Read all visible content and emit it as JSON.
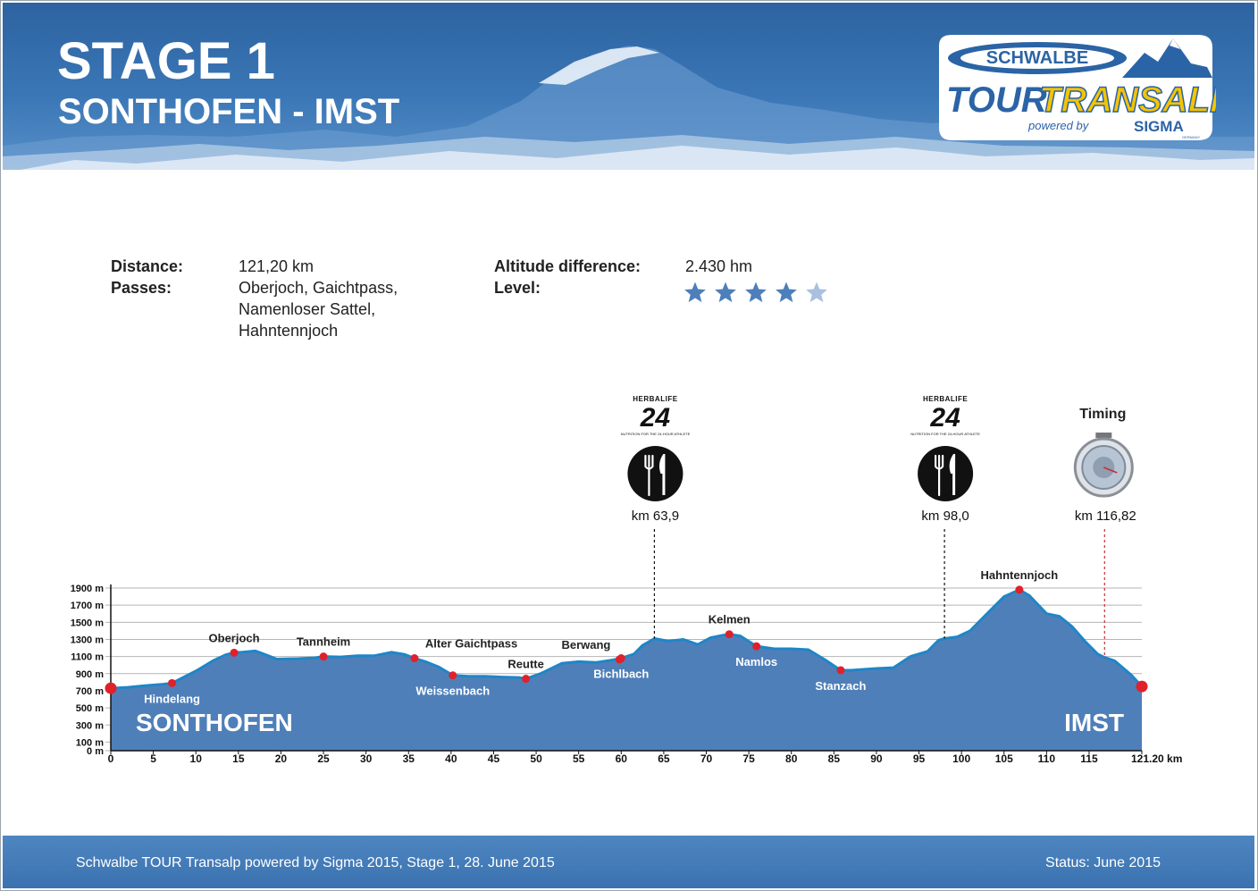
{
  "header": {
    "title": "STAGE 1",
    "subtitle": "SONTHOFEN - IMST",
    "logo": {
      "top": "SCHWALBE",
      "main_left": "TOUR",
      "main_right": "TRANSALP",
      "powered": "powered by",
      "sponsor": "SIGMA",
      "sponsor_sub": "GERMANY"
    }
  },
  "info": {
    "distance_label": "Distance:",
    "distance_value": "121,20 km",
    "passes_label": "Passes:",
    "passes_lines": [
      "Oberjoch, Gaichtpass,",
      "Namenloser Sattel,",
      "Hahntennjoch"
    ],
    "altitude_label": "Altitude difference:",
    "altitude_value": "2.430 hm",
    "level_label": "Level:",
    "level_rating": 4,
    "level_max": 5
  },
  "stations": [
    {
      "type": "food",
      "brand": "HERBALIFE",
      "brand_num": "24",
      "tagline": "NUTRITION FOR THE 24-HOUR ATHLETE",
      "km": 63.9,
      "label": "km 63,9"
    },
    {
      "type": "food",
      "brand": "HERBALIFE",
      "brand_num": "24",
      "tagline": "NUTRITION FOR THE 24-HOUR ATHLETE",
      "km": 98.0,
      "label": "km 98,0"
    },
    {
      "type": "timing",
      "title": "Timing",
      "km": 116.82,
      "label": "km 116,82"
    }
  ],
  "chart_data": {
    "type": "area",
    "x_unit": "km",
    "y_unit": "m",
    "xlim": [
      0,
      121.2
    ],
    "ylim": [
      0,
      1900
    ],
    "x_ticks": [
      "0",
      "5",
      "10",
      "15",
      "20",
      "25",
      "30",
      "35",
      "40",
      "45",
      "50",
      "55",
      "60",
      "65",
      "70",
      "75",
      "80",
      "85",
      "90",
      "95",
      "100",
      "105",
      "110",
      "115"
    ],
    "x_end_label": "121.20 km",
    "y_ticks": [
      "0 m",
      "100 m",
      "300 m",
      "500 m",
      "700 m",
      "900 m",
      "1100 m",
      "1300 m",
      "1500 m",
      "1700 m",
      "1900 m"
    ],
    "start_label": "SONTHOFEN",
    "end_label": "IMST",
    "profile": [
      [
        0,
        730
      ],
      [
        2,
        740
      ],
      [
        4,
        760
      ],
      [
        6,
        775
      ],
      [
        7.2,
        790
      ],
      [
        8,
        830
      ],
      [
        10,
        930
      ],
      [
        12,
        1050
      ],
      [
        13.5,
        1120
      ],
      [
        14.5,
        1145
      ],
      [
        15.5,
        1150
      ],
      [
        17,
        1165
      ],
      [
        18.5,
        1110
      ],
      [
        19.5,
        1070
      ],
      [
        22,
        1075
      ],
      [
        24,
        1085
      ],
      [
        25,
        1100
      ],
      [
        27,
        1095
      ],
      [
        29,
        1110
      ],
      [
        31,
        1110
      ],
      [
        33,
        1150
      ],
      [
        34.5,
        1125
      ],
      [
        35.7,
        1080
      ],
      [
        37,
        1040
      ],
      [
        38.5,
        980
      ],
      [
        40.2,
        880
      ],
      [
        42,
        870
      ],
      [
        44,
        870
      ],
      [
        46,
        860
      ],
      [
        48,
        855
      ],
      [
        48.8,
        840
      ],
      [
        50.5,
        900
      ],
      [
        53,
        1020
      ],
      [
        55,
        1040
      ],
      [
        57,
        1030
      ],
      [
        59,
        1060
      ],
      [
        60,
        1080
      ],
      [
        61.5,
        1130
      ],
      [
        62.5,
        1230
      ],
      [
        63.9,
        1310
      ],
      [
        65.5,
        1280
      ],
      [
        67.3,
        1300
      ],
      [
        69,
        1240
      ],
      [
        70.5,
        1320
      ],
      [
        72,
        1350
      ],
      [
        72.7,
        1360
      ],
      [
        74,
        1340
      ],
      [
        75.9,
        1220
      ],
      [
        78,
        1190
      ],
      [
        80,
        1190
      ],
      [
        82,
        1180
      ],
      [
        84,
        1060
      ],
      [
        85.8,
        940
      ],
      [
        87,
        940
      ],
      [
        90,
        960
      ],
      [
        92,
        970
      ],
      [
        94,
        1100
      ],
      [
        96,
        1160
      ],
      [
        97.3,
        1290
      ],
      [
        98,
        1310
      ],
      [
        99.5,
        1330
      ],
      [
        101,
        1400
      ],
      [
        103,
        1600
      ],
      [
        105,
        1800
      ],
      [
        106.8,
        1880
      ],
      [
        108,
        1810
      ],
      [
        110,
        1600
      ],
      [
        111.5,
        1570
      ],
      [
        113,
        1450
      ],
      [
        114.5,
        1280
      ],
      [
        116,
        1130
      ],
      [
        116.8,
        1090
      ],
      [
        118,
        1050
      ],
      [
        120,
        880
      ],
      [
        121.2,
        750
      ]
    ],
    "points": [
      {
        "name": "Hindelang",
        "km": 7.2,
        "alt": 790,
        "label_pos": "below"
      },
      {
        "name": "Oberjoch",
        "km": 14.5,
        "alt": 1145,
        "label_pos": "above"
      },
      {
        "name": "Tannheim",
        "km": 25,
        "alt": 1100,
        "label_pos": "above"
      },
      {
        "name": "Alter Gaichtpass",
        "km": 35.7,
        "alt": 1080,
        "label_pos": "above-right"
      },
      {
        "name": "Weissenbach",
        "km": 40.2,
        "alt": 880,
        "label_pos": "below"
      },
      {
        "name": "Reutte",
        "km": 48.8,
        "alt": 840,
        "label_pos": "above"
      },
      {
        "name": "Berwang",
        "km": 59.8,
        "alt": 1065,
        "label_pos": "above-left"
      },
      {
        "name": "Bichlbach",
        "km": 60,
        "alt": 1080,
        "label_pos": "below"
      },
      {
        "name": "Kelmen",
        "km": 72.7,
        "alt": 1360,
        "label_pos": "above"
      },
      {
        "name": "Namlos",
        "km": 75.9,
        "alt": 1220,
        "label_pos": "below"
      },
      {
        "name": "Stanzach",
        "km": 85.8,
        "alt": 940,
        "label_pos": "below"
      },
      {
        "name": "Hahntennjoch",
        "km": 106.8,
        "alt": 1880,
        "label_pos": "above"
      }
    ],
    "endpoints": [
      {
        "km": 0,
        "alt": 730
      },
      {
        "km": 121.2,
        "alt": 750
      }
    ],
    "colors": {
      "fill": "#4f7fb9",
      "line": "#1f86c7",
      "point": "#e0212b",
      "grid": "#b5b5b5",
      "station_line": "#111111",
      "timing_line": "#c0303a"
    }
  },
  "footer": {
    "left": "Schwalbe TOUR Transalp powered by Sigma 2015, Stage 1, 28. June 2015",
    "right": "Status: June 2015"
  }
}
